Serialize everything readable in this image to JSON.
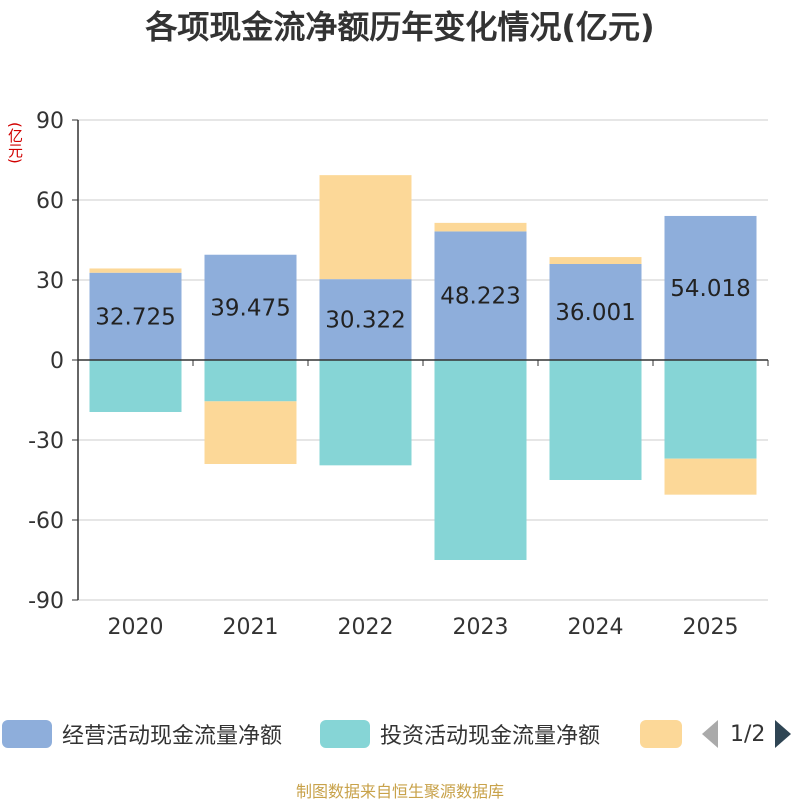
{
  "chart_data": {
    "type": "bar",
    "stacked": true,
    "title": "各项现金流净额历年变化情况(亿元)",
    "ylabel": "(亿元)",
    "ylim": [
      -90,
      90
    ],
    "yticks": [
      90,
      60,
      30,
      0,
      -30,
      -60,
      -90
    ],
    "categories": [
      "2020",
      "2021",
      "2022",
      "2023",
      "2024",
      "2025"
    ],
    "series": [
      {
        "name": "经营活动现金流量净额",
        "color": "#8eaedb",
        "values": [
          32.725,
          39.475,
          30.322,
          48.223,
          36.001,
          54.018
        ],
        "labeled": true
      },
      {
        "name": "投资活动现金流量净额",
        "color": "#86d5d6",
        "values": [
          -19.5,
          -15.5,
          -39.5,
          -75,
          -45,
          -37
        ],
        "labeled": false
      },
      {
        "name": "",
        "color": "#fcd898",
        "values": [
          1.6,
          -23.5,
          39,
          3.2,
          2.6,
          -13.5
        ],
        "labeled": false
      }
    ],
    "value_labels": [
      "32.725",
      "39.475",
      "30.322",
      "48.223",
      "36.001",
      "54.018"
    ]
  },
  "legend": {
    "items": [
      {
        "label": "经营活动现金流量净额",
        "color": "#8eaedb"
      },
      {
        "label": "投资活动现金流量净额",
        "color": "#86d5d6"
      },
      {
        "label": "",
        "color": "#fcd898"
      }
    ],
    "page_indicator": "1/2"
  },
  "source": "制图数据来自恒生聚源数据库"
}
